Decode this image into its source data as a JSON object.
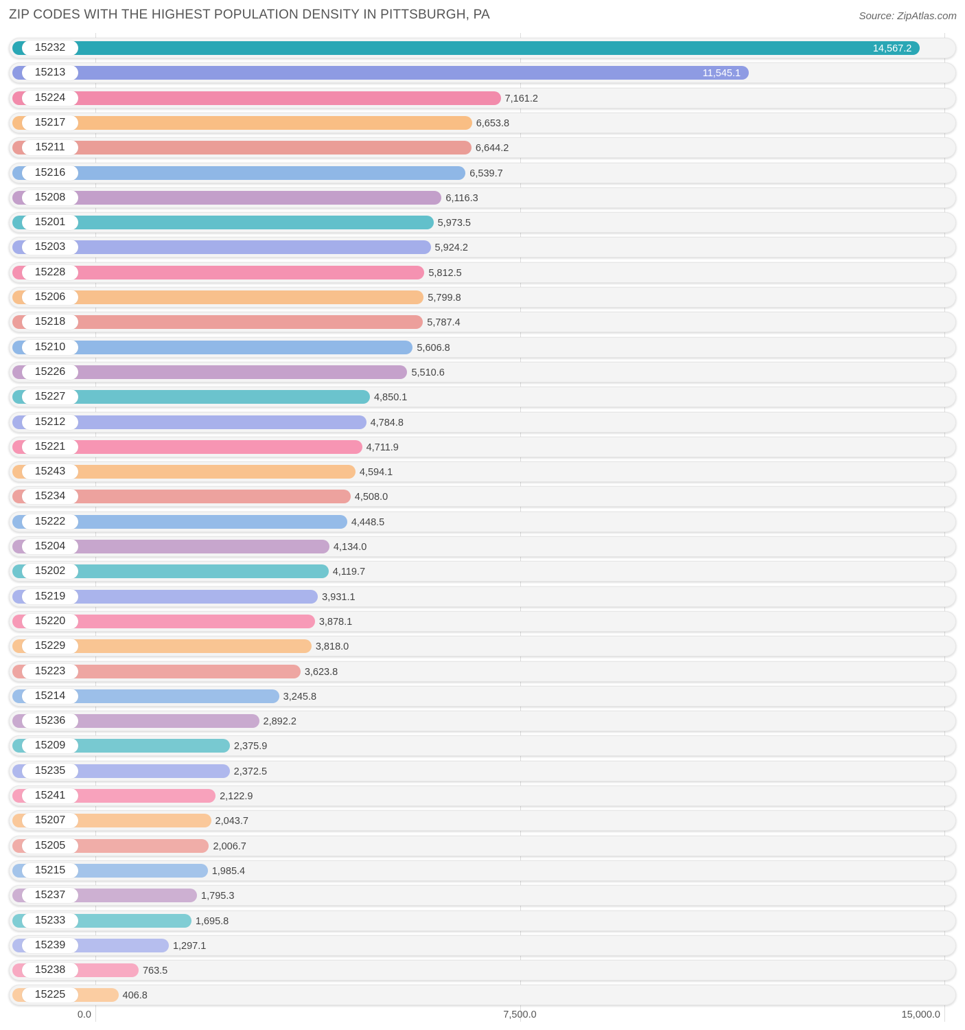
{
  "chart_data": {
    "type": "bar",
    "orientation": "horizontal",
    "title": "ZIP CODES WITH THE HIGHEST POPULATION DENSITY IN PITTSBURGH, PA",
    "source": "Source: ZipAtlas.com",
    "xlim": [
      0,
      15000
    ],
    "xticks": [
      {
        "value": 0,
        "label": "0.0"
      },
      {
        "value": 7500,
        "label": "7,500.0"
      },
      {
        "value": 15000,
        "label": "15,000.0"
      }
    ],
    "categories": [
      "15232",
      "15213",
      "15224",
      "15217",
      "15211",
      "15216",
      "15208",
      "15201",
      "15203",
      "15228",
      "15206",
      "15218",
      "15210",
      "15226",
      "15227",
      "15212",
      "15221",
      "15243",
      "15234",
      "15222",
      "15204",
      "15202",
      "15219",
      "15220",
      "15229",
      "15223",
      "15214",
      "15236",
      "15209",
      "15235",
      "15241",
      "15207",
      "15205",
      "15215",
      "15237",
      "15233",
      "15239",
      "15238",
      "15225"
    ],
    "values": [
      14567.2,
      11545.1,
      7161.2,
      6653.8,
      6644.2,
      6539.7,
      6116.3,
      5973.5,
      5924.2,
      5812.5,
      5799.8,
      5787.4,
      5606.8,
      5510.6,
      4850.1,
      4784.8,
      4711.9,
      4594.1,
      4508.0,
      4448.5,
      4134.0,
      4119.7,
      3931.1,
      3878.1,
      3818.0,
      3623.8,
      3245.8,
      2892.2,
      2375.9,
      2372.5,
      2122.9,
      2043.7,
      2006.7,
      1985.4,
      1795.3,
      1695.8,
      1297.1,
      763.5,
      406.8
    ],
    "value_labels": [
      "14,567.2",
      "11,545.1",
      "7,161.2",
      "6,653.8",
      "6,644.2",
      "6,539.7",
      "6,116.3",
      "5,973.5",
      "5,924.2",
      "5,812.5",
      "5,799.8",
      "5,787.4",
      "5,606.8",
      "5,510.6",
      "4,850.1",
      "4,784.8",
      "4,711.9",
      "4,594.1",
      "4,508.0",
      "4,448.5",
      "4,134.0",
      "4,119.7",
      "3,931.1",
      "3,878.1",
      "3,818.0",
      "3,623.8",
      "3,245.8",
      "2,892.2",
      "2,375.9",
      "2,372.5",
      "2,122.9",
      "2,043.7",
      "2,006.7",
      "1,985.4",
      "1,795.3",
      "1,695.8",
      "1,297.1",
      "763.5",
      "406.8"
    ],
    "colors": [
      "#2aa7b5",
      "#8e9be3",
      "#f28bab",
      "#f9be84",
      "#ea9d97",
      "#8fb7e6",
      "#c39fca",
      "#62c0cb",
      "#a4aeea",
      "#f592b1",
      "#f8c08c",
      "#ec9f9b",
      "#90b8e7",
      "#c5a1cb",
      "#6bc3cd",
      "#a8b1eb",
      "#f795b3",
      "#f9c28e",
      "#eda29e",
      "#95bbe8",
      "#c7a6cd",
      "#71c6cf",
      "#aab4ec",
      "#f79ab7",
      "#f9c593",
      "#eea6a2",
      "#9cbfe9",
      "#c9aacf",
      "#78c9d1",
      "#afb8ed",
      "#f8a2bc",
      "#fac89a",
      "#f0ada8",
      "#a4c4ea",
      "#cdb0d2",
      "#80cdd4",
      "#b6beee",
      "#f8aac2",
      "#fbcda2"
    ]
  }
}
